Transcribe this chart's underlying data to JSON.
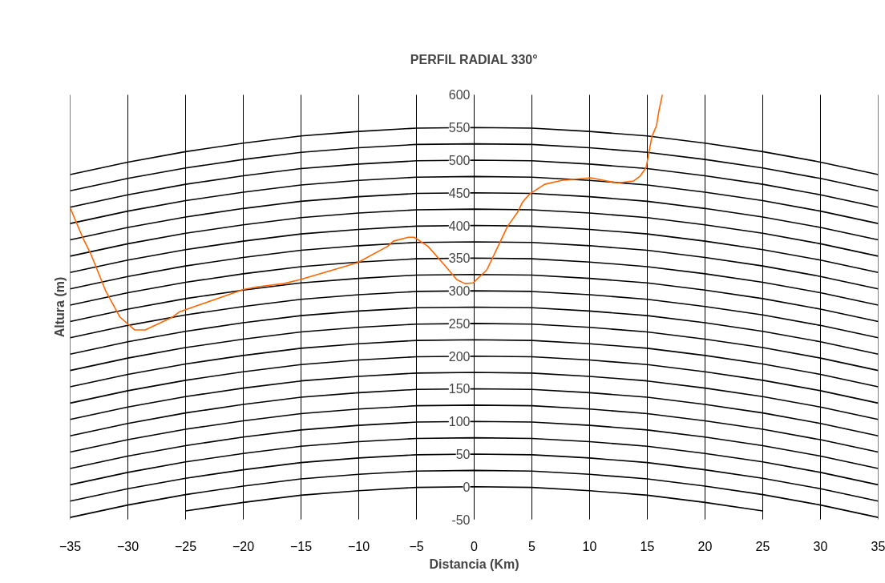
{
  "chart_data": {
    "type": "line",
    "title": "PERFIL RADIAL 330°",
    "xlabel": "Distancia (Km)",
    "ylabel": "Altura (m)",
    "xlim": [
      -35,
      35
    ],
    "xticks": [
      -35,
      -30,
      -25,
      -20,
      -15,
      -10,
      -5,
      0,
      5,
      10,
      15,
      20,
      25,
      30,
      35
    ],
    "ylim": [
      -50,
      600
    ],
    "yticks": [
      -50,
      0,
      50,
      100,
      150,
      200,
      250,
      300,
      350,
      400,
      450,
      500,
      550,
      600
    ],
    "grid": "x",
    "x": [
      -35,
      -30,
      -25,
      -20,
      -15,
      -10,
      -5,
      0,
      5,
      10,
      15,
      20,
      25,
      30,
      35
    ],
    "series": [
      {
        "color": "#000000",
        "values": [
          null,
          null,
          -37,
          -24,
          -13,
          -6,
          -1,
          0,
          -1,
          -6,
          -13,
          -24,
          -37,
          null,
          null
        ]
      },
      {
        "color": "#000000",
        "values": [
          -47,
          -28,
          -12,
          1,
          12,
          19,
          24,
          25,
          24,
          19,
          12,
          1,
          -12,
          -28,
          -47
        ]
      },
      {
        "color": "#000000",
        "values": [
          -22,
          -3,
          13,
          26,
          37,
          44,
          49,
          50,
          49,
          44,
          37,
          26,
          13,
          -3,
          -22
        ]
      },
      {
        "color": "#000000",
        "values": [
          3,
          22,
          38,
          51,
          62,
          69,
          74,
          75,
          74,
          69,
          62,
          51,
          38,
          22,
          3
        ]
      },
      {
        "color": "#000000",
        "values": [
          28,
          47,
          63,
          76,
          87,
          94,
          99,
          100,
          99,
          94,
          87,
          76,
          63,
          47,
          28
        ]
      },
      {
        "color": "#000000",
        "values": [
          53,
          72,
          88,
          101,
          112,
          119,
          124,
          125,
          124,
          119,
          112,
          101,
          88,
          72,
          53
        ]
      },
      {
        "color": "#000000",
        "values": [
          78,
          97,
          113,
          126,
          137,
          144,
          149,
          150,
          149,
          144,
          137,
          126,
          113,
          97,
          78
        ]
      },
      {
        "color": "#000000",
        "values": [
          103,
          122,
          138,
          151,
          162,
          169,
          174,
          175,
          174,
          169,
          162,
          151,
          138,
          122,
          103
        ]
      },
      {
        "color": "#000000",
        "values": [
          128,
          147,
          163,
          176,
          187,
          194,
          199,
          200,
          199,
          194,
          187,
          176,
          163,
          147,
          128
        ]
      },
      {
        "color": "#000000",
        "values": [
          153,
          172,
          188,
          201,
          212,
          219,
          224,
          225,
          224,
          219,
          212,
          201,
          188,
          172,
          153
        ]
      },
      {
        "color": "#000000",
        "values": [
          178,
          197,
          213,
          226,
          237,
          244,
          249,
          250,
          249,
          244,
          237,
          226,
          213,
          197,
          178
        ]
      },
      {
        "color": "#000000",
        "values": [
          203,
          222,
          238,
          251,
          262,
          269,
          274,
          275,
          274,
          269,
          262,
          251,
          238,
          222,
          203
        ]
      },
      {
        "color": "#000000",
        "values": [
          228,
          247,
          263,
          276,
          287,
          294,
          299,
          300,
          299,
          294,
          287,
          276,
          263,
          247,
          228
        ]
      },
      {
        "color": "#000000",
        "values": [
          253,
          272,
          288,
          301,
          312,
          319,
          324,
          325,
          324,
          319,
          312,
          301,
          288,
          272,
          253
        ]
      },
      {
        "color": "#000000",
        "values": [
          278,
          297,
          313,
          326,
          337,
          344,
          349,
          350,
          349,
          344,
          337,
          326,
          313,
          297,
          278
        ]
      },
      {
        "color": "#000000",
        "values": [
          303,
          322,
          338,
          351,
          362,
          369,
          374,
          375,
          374,
          369,
          362,
          351,
          338,
          322,
          303
        ]
      },
      {
        "color": "#000000",
        "values": [
          328,
          347,
          363,
          376,
          387,
          394,
          399,
          400,
          399,
          394,
          387,
          376,
          363,
          347,
          328
        ]
      },
      {
        "color": "#000000",
        "values": [
          353,
          372,
          388,
          401,
          412,
          419,
          424,
          425,
          424,
          419,
          412,
          401,
          388,
          372,
          353
        ]
      },
      {
        "color": "#000000",
        "values": [
          378,
          397,
          413,
          426,
          437,
          444,
          449,
          450,
          449,
          444,
          437,
          426,
          413,
          397,
          378
        ]
      },
      {
        "color": "#000000",
        "values": [
          403,
          422,
          438,
          451,
          462,
          469,
          474,
          475,
          474,
          469,
          462,
          451,
          438,
          422,
          403
        ]
      },
      {
        "color": "#000000",
        "values": [
          428,
          447,
          463,
          476,
          487,
          494,
          499,
          500,
          499,
          494,
          487,
          476,
          463,
          447,
          428
        ]
      },
      {
        "color": "#000000",
        "values": [
          453,
          472,
          488,
          501,
          512,
          519,
          524,
          525,
          524,
          519,
          512,
          501,
          488,
          472,
          453
        ]
      },
      {
        "color": "#000000",
        "values": [
          478,
          497,
          513,
          526,
          537,
          544,
          549,
          550,
          549,
          544,
          537,
          526,
          513,
          497,
          478
        ]
      },
      {
        "color": "#ff6600",
        "x": [
          -35,
          -33.9,
          -33.2,
          -31.9,
          -30.7,
          -29.4,
          -28.5,
          -26.2,
          -25.5,
          -20.0,
          -18.8,
          -16.5,
          -15.1,
          -12.8,
          -10.1,
          -7.5,
          -7.0,
          -5.7,
          -5.2,
          -4.0,
          -2.6,
          -1.5,
          -0.8,
          -0.1,
          1.1,
          2.2,
          2.9,
          3.75,
          4.2,
          4.8,
          6.1,
          7.6,
          10.1,
          12.4,
          13.8,
          14.4,
          14.9,
          15.4,
          15.8,
          16.0,
          16.3
        ],
        "values": [
          427,
          381,
          356,
          299,
          260,
          240,
          240,
          259,
          268,
          302,
          306,
          311,
          317,
          329,
          343,
          368,
          376,
          382,
          382,
          368,
          340,
          317,
          311,
          312,
          332,
          373,
          399,
          420,
          436,
          448,
          463,
          469,
          473,
          465,
          468,
          476,
          489,
          536,
          553,
          575,
          600
        ]
      }
    ]
  }
}
